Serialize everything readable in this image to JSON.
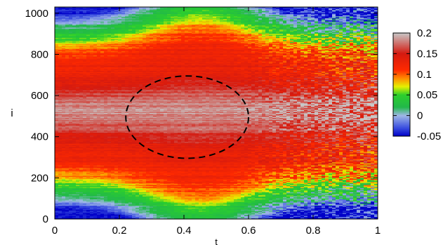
{
  "chart_data": {
    "type": "heatmap",
    "xlabel": "t",
    "ylabel": "i",
    "xlim": [
      0,
      1
    ],
    "ylim": [
      0,
      1030
    ],
    "x_ticks": [
      "0",
      "0.2",
      "0.4",
      "0.6",
      "0.8",
      "1"
    ],
    "y_ticks": [
      "0",
      "200",
      "400",
      "600",
      "800",
      "1000"
    ],
    "colorbar": {
      "range": [
        -0.05,
        0.2
      ],
      "ticks": [
        "-0.05",
        "0",
        "0.05",
        "0.1",
        "0.15",
        "0.2"
      ],
      "stops": [
        {
          "value": -0.05,
          "color": "#0000c8"
        },
        {
          "value": -0.03,
          "color": "#3a4ee0"
        },
        {
          "value": 0.0,
          "color": "#9fb7e6"
        },
        {
          "value": 0.02,
          "color": "#22b84a"
        },
        {
          "value": 0.05,
          "color": "#2ccf2c"
        },
        {
          "value": 0.07,
          "color": "#e6f000"
        },
        {
          "value": 0.09,
          "color": "#ff8c00"
        },
        {
          "value": 0.11,
          "color": "#ff2a00"
        },
        {
          "value": 0.15,
          "color": "#d41a10"
        },
        {
          "value": 0.2,
          "color": "#c8c8c8"
        }
      ]
    },
    "field_model": {
      "i_center": 510,
      "profile_points": [
        {
          "d": 0,
          "v": 0.185
        },
        {
          "d": 60,
          "v": 0.17
        },
        {
          "d": 130,
          "v": 0.14
        },
        {
          "d": 250,
          "v": 0.12
        },
        {
          "d": 310,
          "v": 0.09
        },
        {
          "d": 350,
          "v": 0.05
        },
        {
          "d": 400,
          "v": 0.02
        },
        {
          "d": 430,
          "v": 0.0
        },
        {
          "d": 470,
          "v": -0.045
        }
      ],
      "peak_t": 0.45,
      "description_note": ""
    },
    "annotation": {
      "shape": "dashed-ellipse",
      "center": {
        "t": 0.41,
        "i": 495
      },
      "radius": {
        "t": 0.19,
        "i": 200
      },
      "color": "#000000"
    }
  }
}
